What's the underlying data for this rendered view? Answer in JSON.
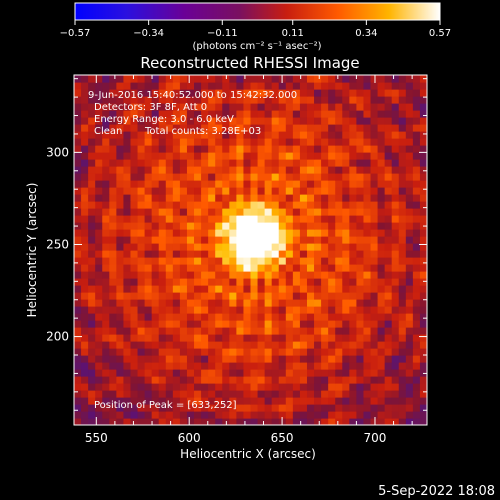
{
  "colorbar": {
    "tick_labels": [
      "−0.57",
      "−0.34",
      "−0.11",
      "0.11",
      "0.34",
      "0.57"
    ],
    "tick_values": [
      -0.57,
      -0.34,
      -0.11,
      0.11,
      0.34,
      0.57
    ],
    "range": [
      -0.57,
      0.57
    ],
    "unit_label": "(photons cm⁻² s⁻¹ asec⁻²)"
  },
  "title": "Reconstructed RHESSI Image",
  "annotations": {
    "time_range": "9-Jun-2016 15:40:52.000 to 15:42:32.000",
    "detectors": "Detectors: 3F 8F, Att 0",
    "energy": "Energy Range: 3.0 - 6.0 keV",
    "clean": "Clean",
    "total_counts": "Total counts: 3.28E+03",
    "peak": "Position of Peak = [633,252]"
  },
  "timestamp": "5-Sep-2022 18:08",
  "chart_data": {
    "type": "heatmap",
    "title": "Reconstructed RHESSI Image",
    "xlabel": "Heliocentric X (arcsec)",
    "ylabel": "Heliocentric Y (arcsec)",
    "xlim": [
      538,
      728
    ],
    "ylim": [
      152,
      342
    ],
    "x_ticks": [
      550,
      600,
      650,
      700
    ],
    "y_ticks": [
      200,
      250,
      300
    ],
    "x_tick_labels": [
      "550",
      "600",
      "650",
      "700"
    ],
    "y_tick_labels": [
      "200",
      "250",
      "300"
    ],
    "peak_position": [
      633,
      252
    ],
    "peak_value": 0.57,
    "min_value": -0.57,
    "colormap": [
      "#0000ff",
      "#3a00c8",
      "#6a0096",
      "#8c1a3c",
      "#d42808",
      "#ff6a00",
      "#ffc400",
      "#ffffff"
    ]
  }
}
